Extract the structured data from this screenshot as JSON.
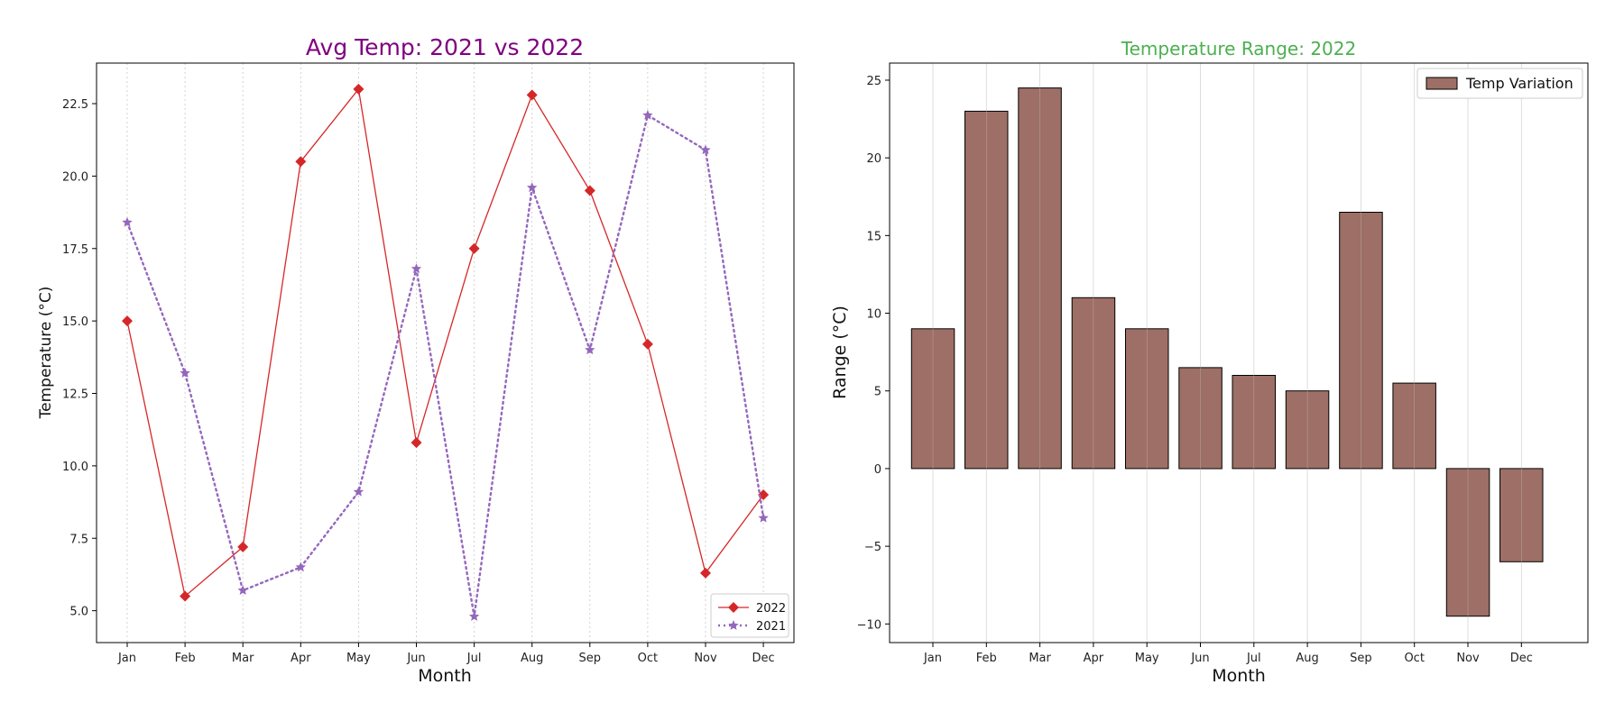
{
  "colors": {
    "line2022": "#d62728",
    "line2021": "#9467bd",
    "bar": "#8c564b",
    "title1": "#800080",
    "title2": "#4caf50"
  },
  "chart_data": [
    {
      "type": "line",
      "title": "Avg Temp: 2021 vs 2022",
      "xlabel": "Month",
      "ylabel": "Temperature (°C)",
      "categories": [
        "Jan",
        "Feb",
        "Mar",
        "Apr",
        "May",
        "Jun",
        "Jul",
        "Aug",
        "Sep",
        "Oct",
        "Nov",
        "Dec"
      ],
      "ylim": [
        3.9,
        23.9
      ],
      "yticks": [
        "5.0",
        "7.5",
        "10.0",
        "12.5",
        "15.0",
        "17.5",
        "20.0",
        "22.5"
      ],
      "grid": "x",
      "legend": "bottom-right",
      "series": [
        {
          "name": "2022",
          "marker": "diamond",
          "style": "solid",
          "values": [
            15.0,
            5.5,
            7.2,
            20.5,
            23.0,
            10.8,
            17.5,
            22.8,
            19.5,
            14.2,
            6.3,
            9.0
          ]
        },
        {
          "name": "2021",
          "marker": "star",
          "style": "dotted",
          "values": [
            18.4,
            13.2,
            5.7,
            6.5,
            9.1,
            16.8,
            4.8,
            19.6,
            14.0,
            22.1,
            20.9,
            8.2
          ]
        }
      ]
    },
    {
      "type": "bar",
      "title": "Temperature Range: 2022",
      "xlabel": "Month",
      "ylabel": "Range (°C)",
      "categories": [
        "Jan",
        "Feb",
        "Mar",
        "Apr",
        "May",
        "Jun",
        "Jul",
        "Aug",
        "Sep",
        "Oct",
        "Nov",
        "Dec"
      ],
      "ylim": [
        -11.2,
        26.1
      ],
      "yticks": [
        "−10",
        "−5",
        "0",
        "5",
        "10",
        "15",
        "20",
        "25"
      ],
      "grid": "x",
      "legend": "top-right",
      "series": [
        {
          "name": "Temp Variation",
          "values": [
            9.0,
            23.0,
            24.5,
            11.0,
            9.0,
            6.5,
            6.0,
            5.0,
            16.5,
            5.5,
            -9.5,
            -6.0
          ]
        }
      ]
    }
  ]
}
